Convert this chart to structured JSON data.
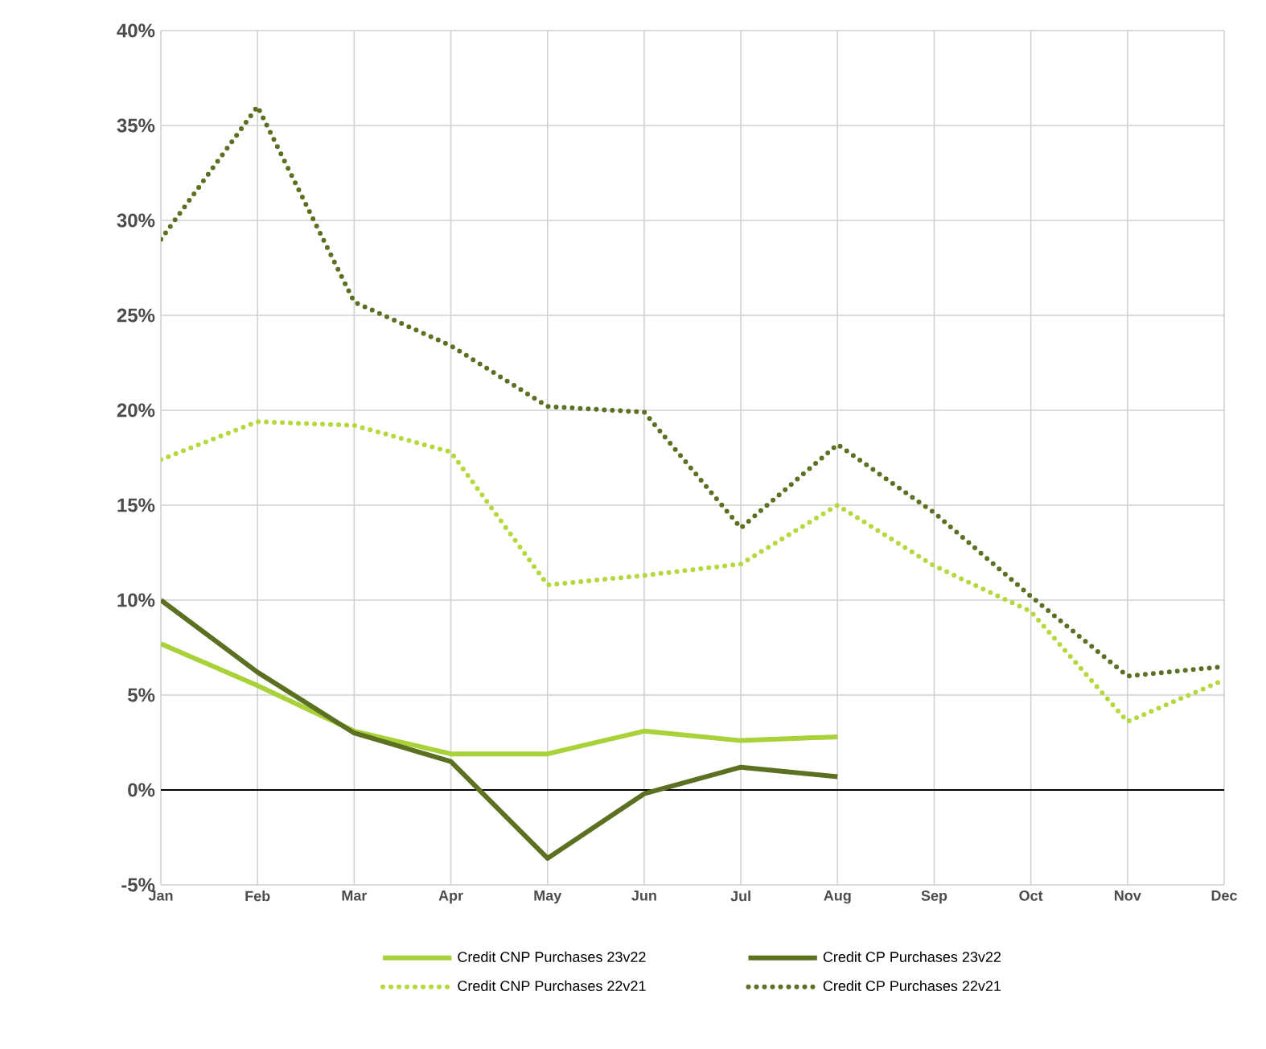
{
  "chart_data": {
    "type": "line",
    "categories": [
      "Jan",
      "Feb",
      "Mar",
      "Apr",
      "May",
      "Jun",
      "Jul",
      "Aug",
      "Sep",
      "Oct",
      "Nov",
      "Dec"
    ],
    "series": [
      {
        "name": "Credit CNP Purchases 23v22",
        "color": "#a9d13a",
        "line_style": "solid",
        "values": [
          7.7,
          5.5,
          3.1,
          1.9,
          1.9,
          3.1,
          2.6,
          2.8,
          null,
          null,
          null,
          null
        ]
      },
      {
        "name": "Credit CP Purchases 23v22",
        "color": "#5b7020",
        "line_style": "solid",
        "values": [
          10,
          6.2,
          3.0,
          1.5,
          -3.6,
          -0.2,
          1.2,
          0.7,
          null,
          null,
          null,
          null
        ]
      },
      {
        "name": "Credit CNP Purchases 22v21",
        "color": "#b5d83c",
        "line_style": "dotted",
        "values": [
          17.4,
          19.4,
          19.2,
          17.8,
          10.8,
          11.3,
          11.9,
          15.0,
          11.8,
          9.4,
          3.6,
          5.8
        ]
      },
      {
        "name": "Credit CP Purchases 22v21",
        "color": "#5b7020",
        "line_style": "dotted",
        "values": [
          29,
          36,
          25.7,
          23.4,
          20.2,
          19.9,
          13.8,
          18.2,
          14.6,
          10.2,
          6.0,
          6.5
        ]
      }
    ],
    "ylim": [
      -5,
      40
    ],
    "yticks": [
      {
        "value": -5,
        "label": "-5%"
      },
      {
        "value": 0,
        "label": "0%"
      },
      {
        "value": 5,
        "label": "5%"
      },
      {
        "value": 10,
        "label": "10%"
      },
      {
        "value": 15,
        "label": "15%"
      },
      {
        "value": 20,
        "label": "20%"
      },
      {
        "value": 25,
        "label": "25%"
      },
      {
        "value": 30,
        "label": "30%"
      },
      {
        "value": 35,
        "label": "35%"
      },
      {
        "value": 40,
        "label": "40%"
      }
    ],
    "ref_lines": [
      {
        "axis": "y",
        "value": 0,
        "color": "#000000"
      }
    ],
    "grid": true,
    "legend": "bottom",
    "marker": "none"
  }
}
